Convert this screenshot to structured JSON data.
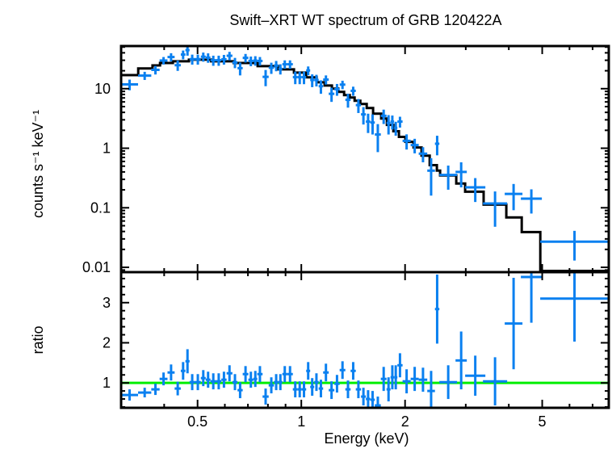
{
  "chart_data": [
    {
      "panel": "spectrum",
      "type": "scatter",
      "title": "Swift–XRT WT spectrum of GRB 120422A",
      "xlabel": "",
      "ylabel": "counts s⁻¹ keV⁻¹",
      "xscale": "log",
      "yscale": "log",
      "xlim": [
        0.3,
        7.8
      ],
      "ylim": [
        0.0083,
        52
      ],
      "x_ticks": [
        0.5,
        1,
        2,
        5
      ],
      "x_minor_ticks": [
        0.3,
        0.4,
        0.6,
        0.7,
        0.8,
        0.9,
        3,
        4,
        6,
        7
      ],
      "y_ticks": [
        0.01,
        0.1,
        1,
        10
      ],
      "y_tick_labels": [
        "0.01",
        "0.1",
        "1",
        "10"
      ],
      "grid": false,
      "legend": "none",
      "colors": {
        "data": "#0a80f0",
        "model": "#000000"
      },
      "series": [
        {
          "name": "data",
          "style": "errorbar",
          "columns": [
            "e_lo",
            "e_hi",
            "counts",
            "counts_err"
          ],
          "points": [
            [
              0.3,
              0.336,
              11.8,
              2.4
            ],
            [
              0.336,
              0.367,
              16.6,
              2.6
            ],
            [
              0.367,
              0.388,
              20.7,
              3.4
            ],
            [
              0.388,
              0.409,
              29.7,
              4.3
            ],
            [
              0.409,
              0.429,
              34.0,
              5.4
            ],
            [
              0.429,
              0.447,
              24.8,
              4.9
            ],
            [
              0.447,
              0.461,
              37.4,
              6.3
            ],
            [
              0.461,
              0.474,
              44.4,
              8.6
            ],
            [
              0.474,
              0.491,
              31.3,
              6.0
            ],
            [
              0.491,
              0.511,
              31.3,
              6.0
            ],
            [
              0.511,
              0.528,
              34.4,
              6.0
            ],
            [
              0.528,
              0.545,
              33.2,
              6.0
            ],
            [
              0.545,
              0.566,
              30.0,
              5.8
            ],
            [
              0.566,
              0.586,
              30.0,
              5.8
            ],
            [
              0.586,
              0.607,
              31.1,
              5.8
            ],
            [
              0.607,
              0.631,
              35.7,
              5.8
            ],
            [
              0.631,
              0.653,
              27.5,
              5.4
            ],
            [
              0.653,
              0.676,
              22.1,
              5.4
            ],
            [
              0.676,
              0.702,
              32.9,
              5.4
            ],
            [
              0.702,
              0.726,
              29.2,
              5.4
            ],
            [
              0.726,
              0.745,
              29.7,
              5.4
            ],
            [
              0.745,
              0.772,
              29.2,
              4.8
            ],
            [
              0.772,
              0.804,
              15.8,
              4.8
            ],
            [
              0.804,
              0.833,
              22.5,
              4.8
            ],
            [
              0.833,
              0.858,
              24.4,
              4.8
            ],
            [
              0.858,
              0.881,
              21.5,
              4.2
            ],
            [
              0.881,
              0.91,
              25.7,
              4.2
            ],
            [
              0.91,
              0.945,
              25.7,
              4.2
            ],
            [
              0.945,
              0.976,
              15.6,
              3.7
            ],
            [
              0.976,
              1.003,
              15.6,
              3.7
            ],
            [
              1.003,
              1.033,
              15.6,
              3.7
            ],
            [
              1.033,
              1.061,
              20.2,
              3.4
            ],
            [
              1.061,
              1.09,
              14.0,
              3.4
            ],
            [
              1.09,
              1.123,
              14.0,
              3.1
            ],
            [
              1.123,
              1.157,
              11.0,
              2.8
            ],
            [
              1.157,
              1.201,
              14.2,
              2.5
            ],
            [
              1.201,
              1.247,
              8.2,
              2.2
            ],
            [
              1.247,
              1.292,
              9.8,
              2.2
            ],
            [
              1.292,
              1.342,
              11.7,
              1.9
            ],
            [
              1.342,
              1.39,
              6.5,
              1.7
            ],
            [
              1.39,
              1.439,
              9.2,
              1.6
            ],
            [
              1.439,
              1.49,
              5.3,
              1.4
            ],
            [
              1.49,
              1.539,
              3.7,
              1.2
            ],
            [
              1.539,
              1.586,
              2.8,
              1.0
            ],
            [
              1.586,
              1.634,
              2.7,
              1.0
            ],
            [
              1.634,
              1.701,
              1.7,
              0.84
            ],
            [
              1.701,
              1.767,
              3.5,
              0.95
            ],
            [
              1.767,
              1.815,
              2.65,
              0.95
            ],
            [
              1.815,
              1.859,
              2.8,
              0.74
            ],
            [
              1.859,
              1.9,
              2.2,
              0.58
            ],
            [
              1.9,
              1.967,
              2.8,
              0.58
            ],
            [
              1.967,
              2.076,
              1.33,
              0.38
            ],
            [
              2.076,
              2.191,
              1.13,
              0.31
            ],
            [
              2.191,
              2.32,
              0.81,
              0.23
            ],
            [
              2.32,
              2.442,
              0.42,
              0.26
            ],
            [
              2.442,
              2.515,
              1.19,
              0.43
            ],
            [
              2.515,
              2.831,
              0.356,
              0.155
            ],
            [
              2.802,
              3.021,
              0.4,
              0.18
            ],
            [
              2.988,
              3.42,
              0.22,
              0.095
            ],
            [
              3.365,
              3.956,
              0.118,
              0.07
            ],
            [
              3.892,
              4.382,
              0.171,
              0.08
            ],
            [
              4.335,
              4.988,
              0.142,
              0.062
            ],
            [
              4.934,
              7.8,
              0.027,
              0.014
            ]
          ]
        },
        {
          "name": "model",
          "style": "step",
          "columns": [
            "e_lo",
            "e_hi",
            "counts"
          ],
          "steps": [
            [
              0.3,
              0.3364,
              16.9
            ],
            [
              0.3364,
              0.37,
              21.8
            ],
            [
              0.37,
              0.389,
              24.6
            ],
            [
              0.389,
              0.424,
              27.0
            ],
            [
              0.424,
              0.472,
              28.8
            ],
            [
              0.472,
              0.547,
              30.7
            ],
            [
              0.547,
              0.636,
              28.8
            ],
            [
              0.636,
              0.747,
              27.0
            ],
            [
              0.747,
              0.855,
              23.9
            ],
            [
              0.855,
              0.952,
              21.1
            ],
            [
              0.952,
              1.033,
              18.6
            ],
            [
              1.033,
              1.108,
              15.5
            ],
            [
              1.108,
              1.169,
              12.8
            ],
            [
              1.169,
              1.227,
              11.3
            ],
            [
              1.227,
              1.281,
              10.0
            ],
            [
              1.281,
              1.331,
              8.83
            ],
            [
              1.331,
              1.382,
              7.79
            ],
            [
              1.382,
              1.428,
              7.1
            ],
            [
              1.428,
              1.483,
              6.27
            ],
            [
              1.483,
              1.548,
              5.54
            ],
            [
              1.548,
              1.615,
              4.74
            ],
            [
              1.615,
              1.705,
              3.81
            ],
            [
              1.705,
              1.771,
              3.16
            ],
            [
              1.771,
              1.85,
              2.47
            ],
            [
              1.85,
              1.92,
              1.93
            ],
            [
              1.92,
              2.004,
              1.55
            ],
            [
              2.004,
              2.117,
              1.28
            ],
            [
              2.117,
              2.233,
              1.03
            ],
            [
              2.233,
              2.358,
              0.75
            ],
            [
              2.358,
              2.474,
              0.52
            ],
            [
              2.474,
              2.528,
              0.42
            ],
            [
              2.528,
              2.816,
              0.349
            ],
            [
              2.816,
              2.988,
              0.256
            ],
            [
              2.988,
              3.38,
              0.186
            ],
            [
              3.38,
              3.934,
              0.113
            ],
            [
              3.934,
              4.36,
              0.069
            ],
            [
              4.36,
              4.937,
              0.039
            ],
            [
              4.937,
              7.8,
              0.0087
            ]
          ]
        }
      ]
    },
    {
      "panel": "ratio",
      "type": "scatter",
      "xlabel": "Energy (keV)",
      "ylabel": "ratio",
      "xscale": "log",
      "yscale": "linear",
      "xlim": [
        0.3,
        7.8
      ],
      "ylim": [
        0.38,
        3.76
      ],
      "x_ticks": [
        0.5,
        1,
        2,
        5
      ],
      "x_tick_labels": [
        "0.5",
        "1",
        "2",
        "5"
      ],
      "x_minor_ticks": [
        0.3,
        0.4,
        0.6,
        0.7,
        0.8,
        0.9,
        3,
        4,
        6,
        7
      ],
      "y_ticks": [
        1,
        2,
        3
      ],
      "y_tick_labels": [
        "1",
        "2",
        "3"
      ],
      "y_minor_step": 0.2,
      "grid": false,
      "legend": "none",
      "reference_line": {
        "y": 1,
        "color": "#00ee00"
      },
      "colors": {
        "data": "#0a80f0"
      },
      "series": [
        {
          "name": "ratio",
          "style": "errorbar",
          "columns": [
            "e_lo",
            "e_hi",
            "ratio",
            "ratio_err"
          ],
          "points": [
            [
              0.3,
              0.336,
              0.7,
              0.14
            ],
            [
              0.336,
              0.367,
              0.76,
              0.12
            ],
            [
              0.367,
              0.388,
              0.84,
              0.14
            ],
            [
              0.388,
              0.409,
              1.1,
              0.16
            ],
            [
              0.409,
              0.429,
              1.26,
              0.2
            ],
            [
              0.429,
              0.447,
              0.86,
              0.17
            ],
            [
              0.447,
              0.461,
              1.3,
              0.22
            ],
            [
              0.461,
              0.474,
              1.54,
              0.3
            ],
            [
              0.474,
              0.491,
              1.02,
              0.2
            ],
            [
              0.491,
              0.511,
              1.02,
              0.2
            ],
            [
              0.511,
              0.528,
              1.12,
              0.2
            ],
            [
              0.528,
              0.545,
              1.08,
              0.2
            ],
            [
              0.545,
              0.566,
              1.04,
              0.2
            ],
            [
              0.566,
              0.586,
              1.04,
              0.2
            ],
            [
              0.586,
              0.607,
              1.08,
              0.2
            ],
            [
              0.607,
              0.631,
              1.24,
              0.2
            ],
            [
              0.631,
              0.653,
              1.02,
              0.2
            ],
            [
              0.653,
              0.676,
              0.82,
              0.2
            ],
            [
              0.676,
              0.702,
              1.22,
              0.2
            ],
            [
              0.702,
              0.726,
              1.08,
              0.2
            ],
            [
              0.726,
              0.745,
              1.1,
              0.2
            ],
            [
              0.745,
              0.772,
              1.22,
              0.2
            ],
            [
              0.772,
              0.804,
              0.66,
              0.2
            ],
            [
              0.804,
              0.833,
              0.94,
              0.2
            ],
            [
              0.833,
              0.858,
              1.02,
              0.2
            ],
            [
              0.858,
              0.881,
              1.02,
              0.2
            ],
            [
              0.881,
              0.91,
              1.22,
              0.2
            ],
            [
              0.91,
              0.945,
              1.22,
              0.2
            ],
            [
              0.945,
              0.976,
              0.84,
              0.2
            ],
            [
              0.976,
              1.003,
              0.84,
              0.2
            ],
            [
              1.003,
              1.033,
              0.84,
              0.2
            ],
            [
              1.033,
              1.061,
              1.3,
              0.22
            ],
            [
              1.061,
              1.09,
              0.9,
              0.22
            ],
            [
              1.09,
              1.123,
              1.02,
              0.22
            ],
            [
              1.123,
              1.157,
              0.86,
              0.22
            ],
            [
              1.157,
              1.201,
              1.26,
              0.22
            ],
            [
              1.201,
              1.247,
              0.82,
              0.22
            ],
            [
              1.247,
              1.292,
              0.98,
              0.22
            ],
            [
              1.292,
              1.342,
              1.32,
              0.22
            ],
            [
              1.342,
              1.39,
              0.84,
              0.22
            ],
            [
              1.39,
              1.439,
              1.3,
              0.22
            ],
            [
              1.439,
              1.49,
              0.84,
              0.22
            ],
            [
              1.49,
              1.539,
              0.66,
              0.22
            ],
            [
              1.539,
              1.586,
              0.6,
              0.22
            ],
            [
              1.586,
              1.634,
              0.58,
              0.22
            ],
            [
              1.634,
              1.701,
              0.44,
              0.22
            ],
            [
              1.701,
              1.767,
              1.1,
              0.3
            ],
            [
              1.767,
              1.815,
              0.84,
              0.3
            ],
            [
              1.815,
              1.859,
              1.14,
              0.3
            ],
            [
              1.859,
              1.9,
              1.14,
              0.3
            ],
            [
              1.9,
              1.967,
              1.44,
              0.3
            ],
            [
              1.967,
              2.076,
              1.04,
              0.3
            ],
            [
              2.076,
              2.191,
              1.1,
              0.3
            ],
            [
              2.191,
              2.32,
              1.08,
              0.3
            ],
            [
              2.32,
              2.442,
              0.8,
              0.5
            ],
            [
              2.442,
              2.515,
              2.84,
              0.86
            ],
            [
              2.515,
              2.831,
              1.02,
              0.42
            ],
            [
              2.802,
              3.021,
              1.56,
              0.72
            ],
            [
              2.988,
              3.42,
              1.18,
              0.5
            ],
            [
              3.365,
              3.956,
              1.04,
              0.6
            ],
            [
              3.892,
              4.382,
              2.48,
              1.14
            ],
            [
              4.335,
              4.988,
              3.64,
              1.14
            ],
            [
              4.934,
              7.8,
              3.1,
              1.07
            ]
          ]
        }
      ]
    }
  ]
}
